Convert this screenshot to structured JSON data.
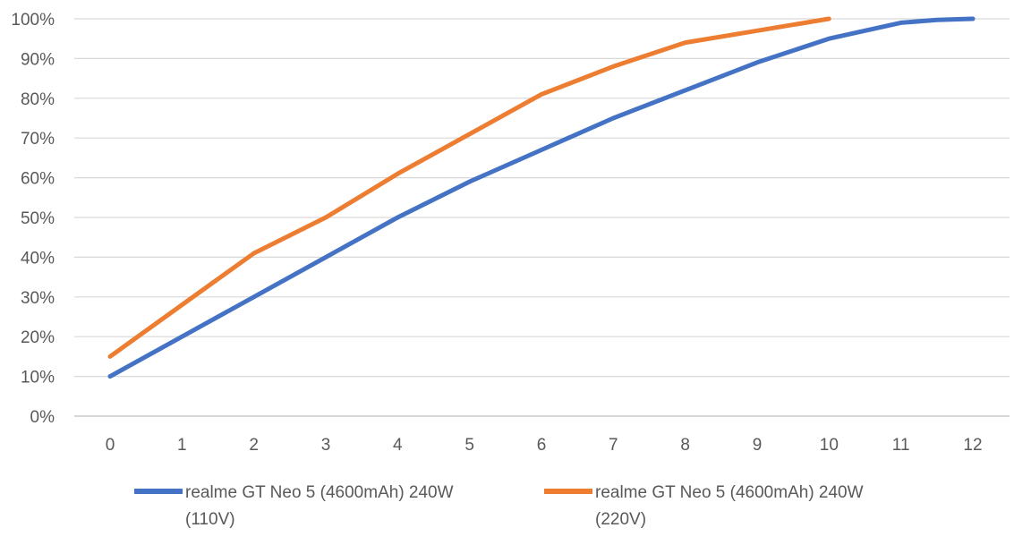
{
  "chart_data": {
    "type": "line",
    "x": [
      0,
      1,
      2,
      3,
      4,
      5,
      6,
      7,
      8,
      9,
      10,
      11,
      12
    ],
    "x_tick_labels": [
      "0",
      "1",
      "2",
      "3",
      "4",
      "5",
      "6",
      "7",
      "8",
      "9",
      "10",
      "11",
      "12"
    ],
    "y_tick_labels": [
      "0%",
      "10%",
      "20%",
      "30%",
      "40%",
      "50%",
      "60%",
      "70%",
      "80%",
      "90%",
      "100%"
    ],
    "ylim": [
      0,
      100
    ],
    "xlim": [
      0,
      12
    ],
    "grid": true,
    "legend_position": "bottom",
    "series": [
      {
        "name": "realme GT Neo 5 (4600mAh) 240W (110V)",
        "legend_lines": [
          "realme GT Neo 5 (4600mAh) 240W",
          "(110V)"
        ],
        "color": "#4472C4",
        "x": [
          0,
          1,
          2,
          3,
          4,
          5,
          6,
          7,
          8,
          9,
          10,
          11,
          11.5,
          12
        ],
        "values": [
          10,
          20,
          30,
          40,
          50,
          59,
          67,
          75,
          82,
          89,
          95,
          99,
          99.7,
          100
        ]
      },
      {
        "name": "realme GT Neo 5 (4600mAh) 240W (220V)",
        "legend_lines": [
          "realme GT Neo 5 (4600mAh) 240W",
          "(220V)"
        ],
        "color": "#ED7D31",
        "x": [
          0,
          1,
          2,
          3,
          4,
          5,
          6,
          7,
          8,
          9,
          10
        ],
        "values": [
          15,
          28,
          41,
          50,
          61,
          71,
          81,
          88,
          94,
          97,
          100
        ]
      }
    ]
  }
}
